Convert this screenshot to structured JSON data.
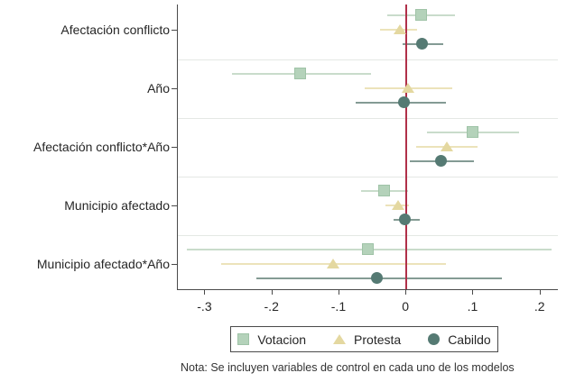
{
  "chart_data": {
    "type": "scatter",
    "subtype": "coefficient-plot",
    "title": "",
    "categories": [
      "Afectación conflicto",
      "Año",
      "Afectación conflicto*Año",
      "Municipio afectado",
      "Municipio afectado*Año"
    ],
    "x_ticks": [
      "-.3",
      "-.2",
      "-.1",
      "0",
      ".1",
      ".2"
    ],
    "x_tick_values": [
      -0.3,
      -0.2,
      -0.1,
      0,
      0.1,
      0.2
    ],
    "xlim": [
      -0.341,
      0.226
    ],
    "grid": "category-separators-only",
    "legend_position": "bottom",
    "zero_line": {
      "value": 0,
      "color": "#b03049"
    },
    "axis_color": "#4a4a4a",
    "separator_color": "#e4e8e4",
    "series": [
      {
        "name": "Votacion",
        "marker": "square",
        "color": "#b4d2ba",
        "border_color": "#9fc3a7",
        "ci_color": "#c9dccb",
        "estimates": [
          0.023,
          -0.158,
          0.099,
          -0.032,
          -0.057
        ],
        "ci_low": [
          -0.028,
          -0.26,
          0.031,
          -0.068,
          -0.327
        ],
        "ci_high": [
          0.072,
          -0.053,
          0.168,
          0.002,
          0.217
        ]
      },
      {
        "name": "Protesta",
        "marker": "triangle",
        "color": "#e4d8a0",
        "border_color": "#d8cb8e",
        "ci_color": "#ece3ba",
        "estimates": [
          -0.01,
          0.003,
          0.06,
          -0.013,
          -0.109
        ],
        "ci_low": [
          -0.039,
          -0.062,
          0.014,
          -0.031,
          -0.277
        ],
        "ci_high": [
          0.016,
          0.068,
          0.106,
          0.004,
          0.059
        ]
      },
      {
        "name": "Cabildo",
        "marker": "circle",
        "color": "#557a73",
        "border_color": "#4a6b64",
        "ci_color": "#849b94",
        "estimates": [
          0.024,
          -0.003,
          0.052,
          -0.001,
          -0.043
        ],
        "ci_low": [
          -0.006,
          -0.076,
          0.005,
          -0.019,
          -0.224
        ],
        "ci_high": [
          0.055,
          0.059,
          0.101,
          0.02,
          0.142
        ]
      }
    ],
    "note": "Nota: Se incluyen variables de control en cada uno de los modelos"
  }
}
